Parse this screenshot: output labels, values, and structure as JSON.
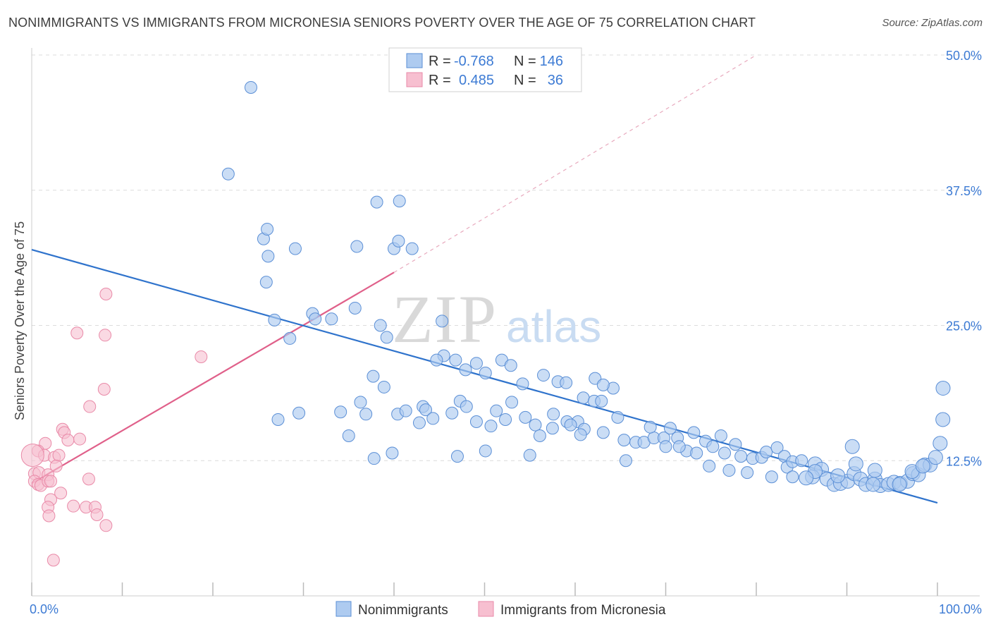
{
  "title": "NONIMMIGRANTS VS IMMIGRANTS FROM MICRONESIA SENIORS POVERTY OVER THE AGE OF 75 CORRELATION CHART",
  "source": "Source: ZipAtlas.com",
  "watermark": {
    "zip": "ZIP",
    "atlas": "atlas"
  },
  "colors": {
    "blue_fill": "#aecbf0",
    "blue_stroke": "#5b8fd6",
    "blue_line": "#2f73cc",
    "pink_fill": "#f7bfd0",
    "pink_stroke": "#e98aa8",
    "pink_line": "#e0608a",
    "accent_text": "#3d7bd4",
    "grid": "#dcdcdc"
  },
  "legend": {
    "rows": [
      {
        "r_label": "R =",
        "r_value": "-0.768",
        "n_label": "N =",
        "n_value": "146"
      },
      {
        "r_label": "R =",
        "r_value": "0.485",
        "n_label": "N =",
        "n_value": "36"
      }
    ]
  },
  "bottom_legend": [
    "Nonimmigrants",
    "Immigrants from Micronesia"
  ],
  "chart_data": {
    "type": "scatter",
    "title": "NONIMMIGRANTS VS IMMIGRANTS FROM MICRONESIA SENIORS POVERTY OVER THE AGE OF 75 CORRELATION CHART",
    "xlabel": "",
    "ylabel": "Seniors Poverty Over the Age of 75",
    "xlim": [
      0,
      100
    ],
    "ylim": [
      0,
      50
    ],
    "x_tick_labels": [
      "0.0%",
      "100.0%"
    ],
    "y_ticks": [
      12.5,
      25.0,
      37.5,
      50.0
    ],
    "y_tick_labels": [
      "12.5%",
      "25.0%",
      "37.5%",
      "50.0%"
    ],
    "grid": true,
    "legend_position": "top-center",
    "series": [
      {
        "name": "Nonimmigrants",
        "r": -0.768,
        "n": 146,
        "trend": {
          "x": [
            0,
            100
          ],
          "y": [
            32.0,
            8.6
          ]
        },
        "points": [
          [
            24.2,
            47.0
          ],
          [
            21.7,
            39.0
          ],
          [
            38.1,
            36.4
          ],
          [
            40.6,
            36.5
          ],
          [
            25.6,
            33.0
          ],
          [
            26.0,
            33.9
          ],
          [
            26.1,
            31.4
          ],
          [
            29.1,
            32.1
          ],
          [
            35.9,
            32.3
          ],
          [
            40.0,
            32.1
          ],
          [
            40.5,
            32.8
          ],
          [
            42.0,
            32.1
          ],
          [
            25.9,
            29.0
          ],
          [
            26.8,
            25.5
          ],
          [
            28.5,
            23.8
          ],
          [
            31.0,
            26.1
          ],
          [
            31.3,
            25.6
          ],
          [
            33.1,
            25.6
          ],
          [
            35.7,
            26.6
          ],
          [
            38.5,
            25.0
          ],
          [
            39.2,
            23.9
          ],
          [
            45.3,
            25.4
          ],
          [
            45.5,
            22.2
          ],
          [
            44.7,
            21.8
          ],
          [
            46.8,
            21.8
          ],
          [
            49.1,
            21.5
          ],
          [
            50.1,
            20.6
          ],
          [
            47.9,
            20.9
          ],
          [
            51.9,
            21.8
          ],
          [
            52.9,
            21.3
          ],
          [
            54.2,
            19.6
          ],
          [
            56.5,
            20.4
          ],
          [
            58.1,
            19.8
          ],
          [
            59.0,
            19.7
          ],
          [
            60.9,
            18.3
          ],
          [
            62.2,
            20.1
          ],
          [
            64.2,
            19.2
          ],
          [
            63.1,
            19.5
          ],
          [
            36.3,
            17.9
          ],
          [
            36.9,
            16.8
          ],
          [
            37.7,
            20.3
          ],
          [
            38.9,
            19.3
          ],
          [
            40.4,
            16.8
          ],
          [
            41.3,
            17.1
          ],
          [
            43.2,
            17.5
          ],
          [
            43.5,
            17.2
          ],
          [
            42.8,
            16.0
          ],
          [
            44.3,
            16.4
          ],
          [
            34.1,
            17.0
          ],
          [
            35.0,
            14.8
          ],
          [
            27.2,
            16.3
          ],
          [
            29.5,
            16.9
          ],
          [
            46.4,
            16.9
          ],
          [
            47.3,
            18.0
          ],
          [
            48.0,
            17.5
          ],
          [
            49.1,
            16.1
          ],
          [
            50.7,
            15.7
          ],
          [
            51.3,
            17.1
          ],
          [
            52.3,
            16.3
          ],
          [
            53.0,
            17.9
          ],
          [
            54.5,
            16.5
          ],
          [
            55.6,
            15.8
          ],
          [
            56.1,
            14.8
          ],
          [
            57.6,
            16.8
          ],
          [
            59.1,
            16.1
          ],
          [
            60.3,
            16.1
          ],
          [
            61.0,
            15.4
          ],
          [
            62.1,
            18.0
          ],
          [
            62.9,
            18.0
          ],
          [
            63.1,
            15.1
          ],
          [
            64.7,
            16.5
          ],
          [
            65.4,
            14.4
          ],
          [
            66.7,
            14.2
          ],
          [
            67.6,
            14.2
          ],
          [
            68.7,
            14.6
          ],
          [
            69.8,
            14.6
          ],
          [
            70.5,
            15.5
          ],
          [
            71.3,
            14.6
          ],
          [
            72.3,
            13.4
          ],
          [
            73.1,
            15.1
          ],
          [
            74.4,
            14.3
          ],
          [
            75.2,
            13.8
          ],
          [
            76.1,
            14.8
          ],
          [
            76.5,
            13.2
          ],
          [
            77.7,
            14.0
          ],
          [
            78.3,
            12.9
          ],
          [
            79.6,
            12.7
          ],
          [
            80.6,
            12.8
          ],
          [
            81.1,
            13.3
          ],
          [
            82.3,
            13.7
          ],
          [
            83.1,
            12.9
          ],
          [
            83.4,
            11.9
          ],
          [
            84.0,
            12.4
          ],
          [
            85.0,
            12.5
          ],
          [
            86.5,
            12.2
          ],
          [
            87.2,
            11.7
          ],
          [
            86.2,
            11.0
          ],
          [
            87.8,
            10.8
          ],
          [
            88.6,
            10.3
          ],
          [
            89.3,
            10.4
          ],
          [
            90.1,
            10.6
          ],
          [
            90.8,
            11.3
          ],
          [
            91.5,
            10.8
          ],
          [
            92.1,
            10.3
          ],
          [
            93.1,
            10.8
          ],
          [
            93.7,
            10.2
          ],
          [
            94.6,
            10.3
          ],
          [
            95.2,
            10.5
          ],
          [
            95.9,
            10.4
          ],
          [
            96.7,
            10.6
          ],
          [
            97.3,
            11.3
          ],
          [
            97.9,
            11.2
          ],
          [
            98.6,
            12.1
          ],
          [
            99.2,
            12.1
          ],
          [
            99.8,
            12.8
          ],
          [
            100.3,
            14.1
          ],
          [
            100.6,
            16.3
          ],
          [
            101.7,
            19.2
          ],
          [
            90.6,
            13.8
          ],
          [
            92.9,
            10.3
          ],
          [
            89.0,
            11.1
          ],
          [
            86.5,
            11.5
          ],
          [
            91.0,
            12.2
          ],
          [
            93.1,
            11.6
          ],
          [
            95.8,
            10.3
          ],
          [
            97.2,
            11.5
          ],
          [
            98.4,
            12.0
          ],
          [
            77.0,
            11.6
          ],
          [
            79.0,
            11.4
          ],
          [
            81.7,
            11.0
          ],
          [
            84.0,
            11.0
          ],
          [
            85.5,
            10.9
          ],
          [
            65.6,
            12.5
          ],
          [
            68.3,
            15.6
          ],
          [
            70.0,
            13.8
          ],
          [
            71.5,
            13.8
          ],
          [
            73.4,
            13.2
          ],
          [
            74.8,
            12.0
          ],
          [
            60.6,
            14.9
          ],
          [
            57.5,
            15.5
          ],
          [
            55.0,
            13.0
          ],
          [
            50.1,
            13.4
          ],
          [
            47.0,
            12.9
          ],
          [
            39.8,
            13.2
          ],
          [
            37.8,
            12.7
          ],
          [
            59.5,
            15.8
          ]
        ]
      },
      {
        "name": "Immigrants from Micronesia",
        "r": 0.485,
        "n": 36,
        "trend": {
          "x": [
            0,
            40
          ],
          "y": [
            10.4,
            29.9
          ],
          "dashed_extension_to": [
            80,
            50
          ]
        },
        "points": [
          [
            8.2,
            27.9
          ],
          [
            5.0,
            24.3
          ],
          [
            8.1,
            24.1
          ],
          [
            18.7,
            22.1
          ],
          [
            8.0,
            19.1
          ],
          [
            6.4,
            17.5
          ],
          [
            3.4,
            15.4
          ],
          [
            3.6,
            15.1
          ],
          [
            4.0,
            14.4
          ],
          [
            5.3,
            14.5
          ],
          [
            1.5,
            14.1
          ],
          [
            0.7,
            13.4
          ],
          [
            1.4,
            13.0
          ],
          [
            2.5,
            12.8
          ],
          [
            3.0,
            13.0
          ],
          [
            2.7,
            12.0
          ],
          [
            0.3,
            11.3
          ],
          [
            0.8,
            11.4
          ],
          [
            1.8,
            11.2
          ],
          [
            0.3,
            10.6
          ],
          [
            0.7,
            10.3
          ],
          [
            1.0,
            10.2
          ],
          [
            1.8,
            10.6
          ],
          [
            2.1,
            10.6
          ],
          [
            6.3,
            10.8
          ],
          [
            3.2,
            9.5
          ],
          [
            2.1,
            8.9
          ],
          [
            4.6,
            8.3
          ],
          [
            6.0,
            8.2
          ],
          [
            7.0,
            8.2
          ],
          [
            7.2,
            7.5
          ],
          [
            1.8,
            8.2
          ],
          [
            0.1,
            13.0
          ],
          [
            1.9,
            7.4
          ],
          [
            8.2,
            6.5
          ],
          [
            2.4,
            3.3
          ]
        ]
      }
    ]
  }
}
